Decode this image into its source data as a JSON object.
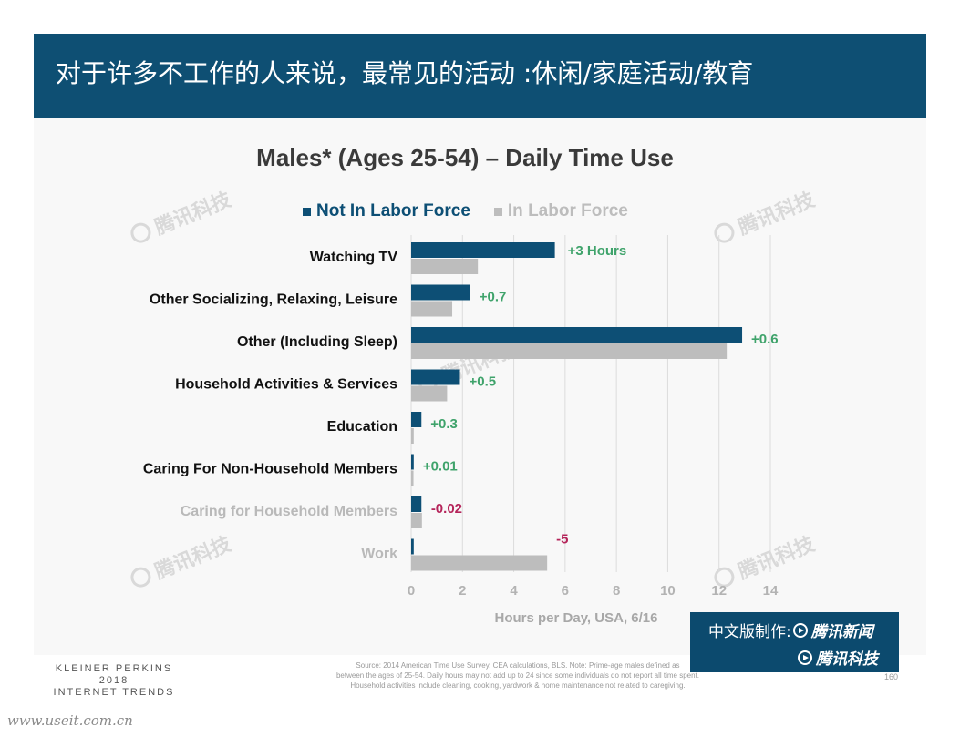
{
  "header": {
    "title": "对于许多不工作的人来说，最常见的活动 :休闲/家庭活动/教育"
  },
  "colors": {
    "header_bg": "#0e4f73",
    "not_in_labor_force": "#0d4f75",
    "in_labor_force": "#bdbdbd",
    "positive_diff": "#3fa36b",
    "negative_diff": "#b5245a",
    "faded_label": "#b9b9b9"
  },
  "chart_data": {
    "type": "bar",
    "orientation": "horizontal",
    "title": "Males* (Ages 25-54) – Daily Time Use",
    "xlabel": "Hours per Day, USA, 6/16",
    "ylabel": "",
    "xlim": [
      0,
      14
    ],
    "xticks": [
      "0",
      "2",
      "4",
      "6",
      "8",
      "10",
      "12",
      "14"
    ],
    "grid": "vertical",
    "legend_placement": "top",
    "categories": [
      "Watching TV",
      "Other Socializing, Relaxing, Leisure",
      "Other (Including Sleep)",
      "Household Activities & Services",
      "Education",
      "Caring For Non-Household Members",
      "Caring for Household Members",
      "Work"
    ],
    "category_faded": [
      false,
      false,
      false,
      false,
      false,
      false,
      true,
      true
    ],
    "series": [
      {
        "name": "Not In Labor Force",
        "color": "#0d4f75",
        "values": [
          5.6,
          2.3,
          12.9,
          1.9,
          0.4,
          0.1,
          0.4,
          0.1
        ]
      },
      {
        "name": "In Labor Force",
        "color": "#bdbdbd",
        "values": [
          2.6,
          1.6,
          12.3,
          1.4,
          0.1,
          0.09,
          0.42,
          5.3
        ]
      }
    ],
    "annotations": [
      "+3 Hours",
      "+0.7",
      "+0.6",
      "+0.5",
      "+0.3",
      "+0.01",
      "-0.02",
      "-5"
    ],
    "annotation_sign": [
      "positive",
      "positive",
      "positive",
      "positive",
      "positive",
      "positive",
      "negative",
      "negative"
    ]
  },
  "footer": {
    "logo_line1": "KLEINER PERKINS",
    "logo_line2": "2018",
    "logo_line3": "INTERNET TRENDS",
    "source_line1": "Source: 2014 American Time Use Survey, CEA calculations, BLS. Note: Prime-age males defined as",
    "source_line2": "between the ages of 25-54. Daily hours may not add up to 24 since some individuals do not report all time spent.",
    "source_line3": "Household activities include cleaning, cooking, yardwork & home maintenance not related to caregiving.",
    "page_number": "160"
  },
  "credit": {
    "prefix": "中文版制作:",
    "line1_name": "腾讯新闻",
    "line2_name": "腾讯科技"
  },
  "watermark": {
    "text": "腾讯科技"
  },
  "site_url": "www.useit.com.cn"
}
